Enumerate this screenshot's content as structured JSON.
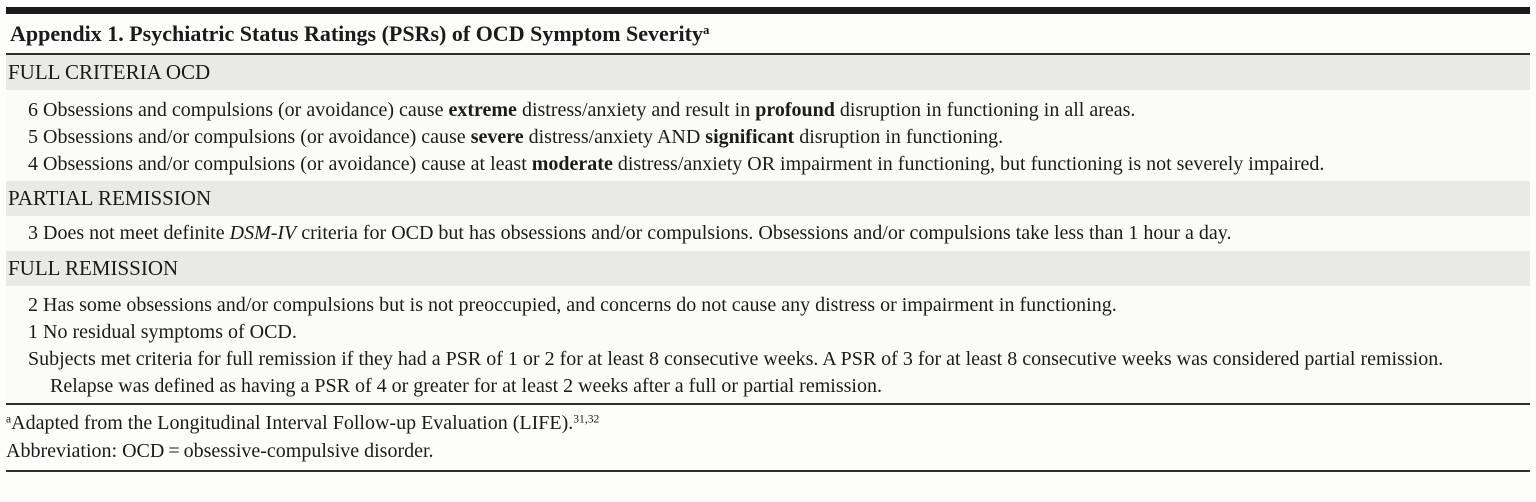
{
  "page": {
    "colors": {
      "ink": "#1b1b1b",
      "rule": "#2d2d2d",
      "band": "#e9e9e6",
      "page_bg": "#fdfdfb",
      "row_bg": "#fbfbf8"
    }
  },
  "title": {
    "segments": [
      {
        "t": "Appendix 1. Psychiatric Status Ratings (PSRs) of OCD Symptom Severity"
      },
      {
        "t": "a",
        "sup": true
      }
    ]
  },
  "sections": [
    {
      "header": "FULL CRITERIA OCD",
      "rows": [
        {
          "rating": "6",
          "segments": [
            {
              "t": "Obsessions and compulsions (or avoidance) cause "
            },
            {
              "t": "extreme",
              "b": true
            },
            {
              "t": " distress/anxiety and result in "
            },
            {
              "t": "profound",
              "b": true
            },
            {
              "t": " disruption in functioning in all areas."
            }
          ]
        },
        {
          "rating": "5",
          "segments": [
            {
              "t": "Obsessions and/or compulsions (or avoidance) cause "
            },
            {
              "t": "severe",
              "b": true
            },
            {
              "t": " distress/anxiety AND "
            },
            {
              "t": "significant",
              "b": true
            },
            {
              "t": " disruption in functioning."
            }
          ]
        },
        {
          "rating": "4",
          "segments": [
            {
              "t": "Obsessions and/or compulsions (or avoidance) cause at least "
            },
            {
              "t": "moderate",
              "b": true
            },
            {
              "t": " distress/anxiety OR impairment in functioning, but functioning is not severely impaired."
            }
          ]
        }
      ]
    },
    {
      "header": "PARTIAL REMISSION",
      "rows": [
        {
          "rating": "3",
          "segments": [
            {
              "t": "Does not meet definite "
            },
            {
              "t": "DSM-IV",
              "i": true
            },
            {
              "t": " criteria for OCD but has obsessions and/or compulsions. Obsessions and/or compulsions take less than 1 hour a day."
            }
          ]
        }
      ]
    },
    {
      "header": "FULL REMISSION",
      "rows": [
        {
          "rating": "2",
          "segments": [
            {
              "t": "Has some obsessions and/or compulsions but is not preoccupied, and concerns do not cause any distress or impairment in functioning."
            }
          ]
        },
        {
          "rating": "1",
          "segments": [
            {
              "t": "No residual symptoms of OCD."
            }
          ]
        },
        {
          "rating": "",
          "segments": [
            {
              "t": "Subjects met criteria for full remission if they had a PSR of 1 or 2 for at least 8 consecutive weeks. A PSR of 3 for at least 8 consecutive weeks was considered partial remission. Relapse was defined as having a PSR of 4 or greater for at least 2 weeks after a full or partial remission."
            }
          ]
        }
      ]
    }
  ],
  "footnotes": [
    {
      "segments": [
        {
          "t": "a",
          "sup": true
        },
        {
          "t": "Adapted from the Longitudinal Interval Follow-up Evaluation (LIFE)."
        },
        {
          "t": "31,32",
          "sup": true
        }
      ]
    },
    {
      "segments": [
        {
          "t": "Abbreviation: OCD = obsessive-compulsive disorder."
        }
      ]
    }
  ]
}
